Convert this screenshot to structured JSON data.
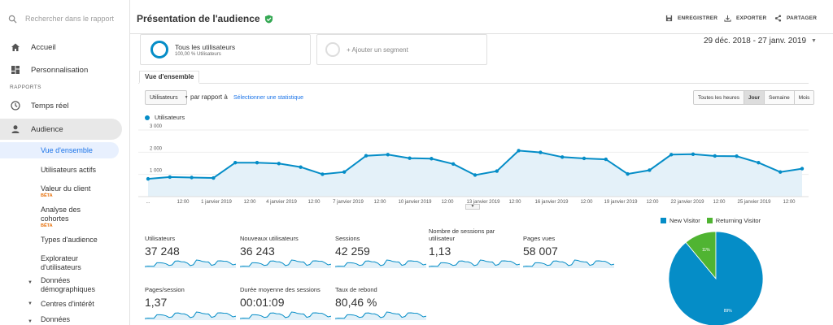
{
  "sidebar": {
    "search_placeholder": "Rechercher dans le rapport",
    "items": [
      {
        "label": "Accueil",
        "icon": "home-icon"
      },
      {
        "label": "Personnalisation",
        "icon": "dashboard-icon"
      }
    ],
    "section_label": "RAPPORTS",
    "reports": [
      {
        "label": "Temps réel",
        "icon": "clock-icon"
      },
      {
        "label": "Audience",
        "icon": "person-icon"
      }
    ],
    "audience_sub": [
      {
        "label": "Vue d'ensemble"
      },
      {
        "label": "Utilisateurs actifs"
      },
      {
        "label": "Valeur du client",
        "badge": "BÊTA"
      },
      {
        "label": "Analyse des cohortes",
        "badge": "BÊTA"
      },
      {
        "label": "Types d'audience"
      },
      {
        "label": "Explorateur d'utilisateurs"
      },
      {
        "label": "Données démographiques"
      },
      {
        "label": "Centres d'intérêt"
      },
      {
        "label": "Données"
      }
    ]
  },
  "header": {
    "title": "Présentation de l'audience",
    "save": "ENREGISTRER",
    "export": "EXPORTER",
    "share": "PARTAGER"
  },
  "segments": {
    "active_title": "Tous les utilisateurs",
    "active_sub": "100,00 % Utilisateurs",
    "add_label": "+ Ajouter un segment"
  },
  "date_range": "29 déc. 2018 - 27 janv. 2019",
  "tab": "Vue d'ensemble",
  "metric_picker": {
    "selected": "Utilisateurs",
    "vs": "par rapport à",
    "select_stat": "Sélectionner une statistique"
  },
  "granularity": [
    "Toutes les heures",
    "Jour",
    "Semaine",
    "Mois"
  ],
  "granularity_selected": "Jour",
  "colors": {
    "primary": "#058dc7",
    "returning": "#50b432",
    "accent": "#1a73e8"
  },
  "chart_data": {
    "type": "area",
    "series": [
      {
        "name": "Utilisateurs",
        "values": [
          800,
          880,
          860,
          840,
          1530,
          1530,
          1490,
          1330,
          1010,
          1110,
          1840,
          1890,
          1730,
          1710,
          1470,
          970,
          1150,
          2070,
          1990,
          1780,
          1720,
          1680,
          1020,
          1190,
          1890,
          1910,
          1830,
          1820,
          1530,
          1110,
          1260
        ]
      }
    ],
    "y_ticks": [
      "1 000",
      "2 000",
      "3 000"
    ],
    "ylim": [
      0,
      3000
    ],
    "x_tick_labels": [
      "...",
      "12:00",
      "1 janvier 2019",
      "12:00",
      "4 janvier 2019",
      "12:00",
      "7 janvier 2019",
      "12:00",
      "10 janvier 2019",
      "12:00",
      "13 janvier 2019",
      "12:00",
      "16 janvier 2019",
      "12:00",
      "19 janvier 2019",
      "12:00",
      "22 janvier 2019",
      "12:00",
      "25 janvier 2019",
      "12:00"
    ],
    "grid": true,
    "legend_position": "top-left"
  },
  "metrics": [
    {
      "label": "Utilisateurs",
      "value": "37 248"
    },
    {
      "label": "Nouveaux utilisateurs",
      "value": "36 243"
    },
    {
      "label": "Sessions",
      "value": "42 259"
    },
    {
      "label": "Nombre de sessions par utilisateur",
      "value": "1,13"
    },
    {
      "label": "Pages vues",
      "value": "58 007"
    },
    {
      "label": "Pages/session",
      "value": "1,37"
    },
    {
      "label": "Durée moyenne des sessions",
      "value": "00:01:09"
    },
    {
      "label": "Taux de rebond",
      "value": "80,46 %"
    }
  ],
  "pie": {
    "legend": [
      "New Visitor",
      "Returning Visitor"
    ],
    "values": [
      89,
      11
    ],
    "labels": [
      "89%",
      "11%"
    ]
  }
}
